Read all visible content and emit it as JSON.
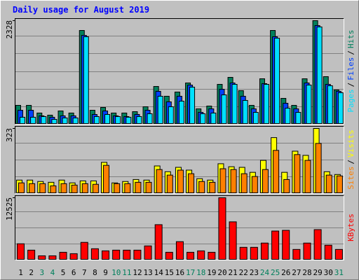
{
  "chart_data": [
    {
      "type": "bar",
      "title": "Daily usage for August 2019",
      "legend_separator": "/",
      "ylim": [
        0,
        2328
      ],
      "yticks": [
        2328
      ],
      "series": [
        {
          "name": "Hits",
          "color": "#00805c",
          "values": [
            412,
            412,
            238,
            190,
            285,
            238,
            2106,
            301,
            364,
            238,
            238,
            269,
            380,
            839,
            618,
            713,
            918,
            333,
            396,
            887,
            1045,
            744,
            412,
            1013,
            2106,
            570,
            412,
            1013,
            2328,
            1061,
            760
          ]
        },
        {
          "name": "Files",
          "color": "#0040ff",
          "values": [
            301,
            301,
            174,
            143,
            174,
            174,
            1995,
            206,
            285,
            174,
            158,
            206,
            301,
            729,
            491,
            618,
            871,
            253,
            333,
            776,
            918,
            618,
            333,
            903,
            1964,
            459,
            333,
            918,
            2217,
            887,
            729
          ]
        },
        {
          "name": "Pages",
          "color": "#00e0ff",
          "values": [
            143,
            143,
            158,
            95,
            127,
            127,
            1964,
            158,
            206,
            158,
            143,
            158,
            222,
            618,
            380,
            507,
            824,
            222,
            238,
            649,
            887,
            523,
            253,
            887,
            1932,
            348,
            253,
            871,
            2186,
            855,
            697
          ]
        }
      ]
    },
    {
      "type": "bar",
      "ylim": [
        0,
        323
      ],
      "yticks": [
        323
      ],
      "series": [
        {
          "name": "Visits",
          "color": "#ffff00",
          "values": [
            64,
            64,
            57,
            53,
            64,
            50,
            60,
            60,
            153,
            50,
            57,
            67,
            64,
            135,
            106,
            128,
            114,
            71,
            64,
            146,
            131,
            128,
            103,
            163,
            277,
            103,
            209,
            188,
            323,
            106,
            92
          ]
        },
        {
          "name": "Sites",
          "color": "#ff8000",
          "values": [
            50,
            46,
            46,
            35,
            46,
            39,
            46,
            43,
            138,
            46,
            46,
            53,
            53,
            117,
            89,
            114,
            96,
            57,
            53,
            121,
            117,
            96,
            82,
            117,
            213,
            67,
            192,
            163,
            248,
            89,
            85
          ]
        }
      ]
    },
    {
      "type": "bar",
      "ylim": [
        0,
        12525
      ],
      "yticks": [
        12525
      ],
      "categories": [
        "1",
        "2",
        "3",
        "4",
        "5",
        "6",
        "7",
        "8",
        "9",
        "10",
        "11",
        "12",
        "13",
        "14",
        "15",
        "16",
        "17",
        "18",
        "19",
        "20",
        "21",
        "22",
        "23",
        "24",
        "25",
        "26",
        "27",
        "28",
        "29",
        "30",
        "31"
      ],
      "category_colors": [
        "#000000",
        "#000000",
        "#00805c",
        "#00805c",
        "#000000",
        "#000000",
        "#000000",
        "#000000",
        "#000000",
        "#00805c",
        "#00805c",
        "#000000",
        "#000000",
        "#000000",
        "#000000",
        "#000000",
        "#00805c",
        "#00805c",
        "#000000",
        "#000000",
        "#000000",
        "#000000",
        "#000000",
        "#00805c",
        "#00805c",
        "#000000",
        "#000000",
        "#000000",
        "#000000",
        "#000000",
        "#00805c"
      ],
      "series": [
        {
          "name": "KBytes",
          "color": "#ff0000",
          "values": [
            3167,
            1872,
            720,
            720,
            1440,
            1152,
            3455,
            2159,
            1728,
            1872,
            1872,
            1872,
            2735,
            7054,
            1440,
            3599,
            1440,
            1728,
            1440,
            12525,
            7630,
            2447,
            2447,
            3311,
            5759,
            5903,
            2016,
            3311,
            6047,
            2879,
            2016
          ]
        }
      ]
    }
  ]
}
